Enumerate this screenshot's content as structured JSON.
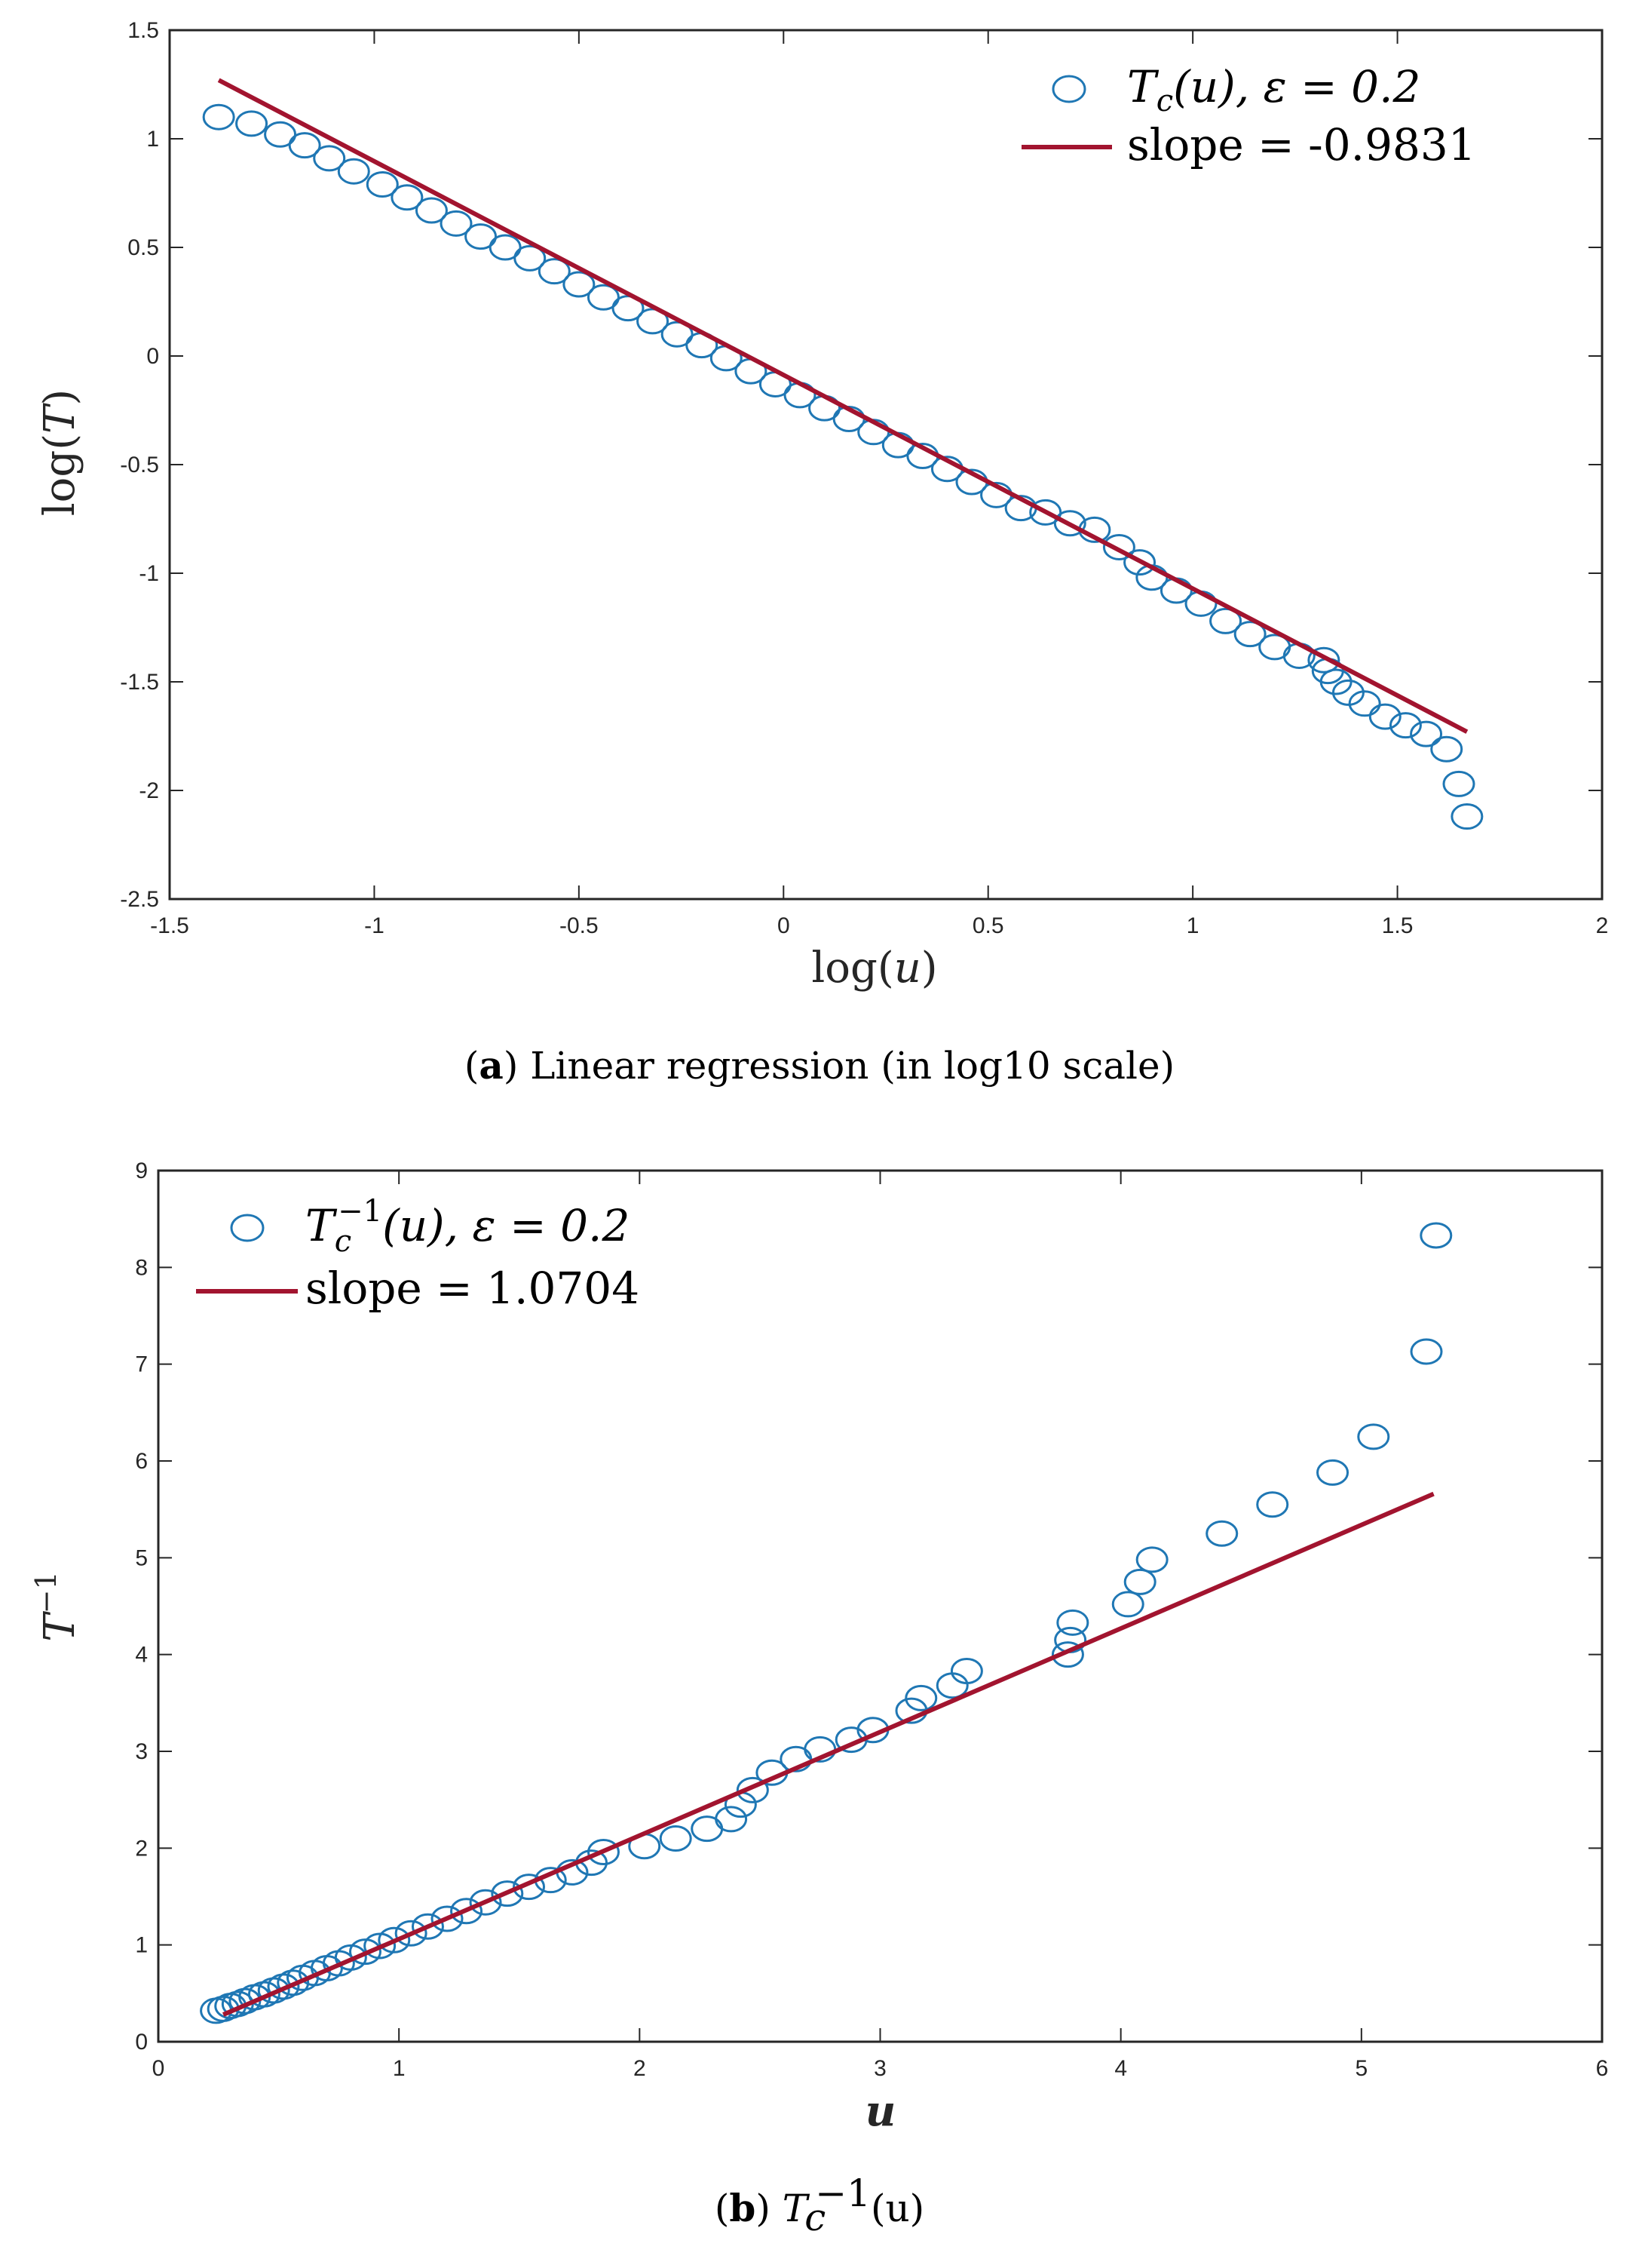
{
  "colors": {
    "marker": "#1f77b4",
    "line": "#a2142f",
    "axis": "#262626"
  },
  "chart_data": [
    {
      "type": "scatter",
      "id": "a",
      "caption_letter": "a",
      "caption_text": "Linear regression (in log10 scale)",
      "xlabel_fn": "log(",
      "xlabel_var": "u",
      "xlabel_close": ")",
      "ylabel_fn": "log(",
      "ylabel_var": "T",
      "ylabel_close": ")",
      "xlim": [
        -1.5,
        2
      ],
      "ylim": [
        -2.5,
        1.5
      ],
      "xticks": [
        -1.5,
        -1,
        -0.5,
        0,
        0.5,
        1,
        1.5,
        2
      ],
      "xtick_labels": [
        "-1.5",
        "-1",
        "-0.5",
        "0",
        "0.5",
        "1",
        "1.5",
        "2"
      ],
      "yticks": [
        -2.5,
        -2,
        -1.5,
        -1,
        -0.5,
        0,
        0.5,
        1,
        1.5
      ],
      "ytick_labels": [
        "-2.5",
        "-2",
        "-1.5",
        "-1",
        "-0.5",
        "0",
        "0.5",
        "1",
        "1.5"
      ],
      "legend": {
        "position": "top-right",
        "series1_math": "T",
        "series1_sub": "c",
        "series1_rest": "(u), ε = 0.2",
        "series2_label": "slope = -0.9831"
      },
      "fit_line": {
        "x": [
          -1.38,
          1.67
        ],
        "y": [
          1.27,
          -1.73
        ]
      },
      "series": [
        {
          "name": "T_c(u), eps = 0.2",
          "x": [
            -1.38,
            -1.3,
            -1.23,
            -1.17,
            -1.11,
            -1.05,
            -0.98,
            -0.92,
            -0.86,
            -0.8,
            -0.74,
            -0.68,
            -0.62,
            -0.56,
            -0.5,
            -0.44,
            -0.38,
            -0.32,
            -0.26,
            -0.2,
            -0.14,
            -0.08,
            -0.02,
            0.04,
            0.1,
            0.16,
            0.22,
            0.28,
            0.34,
            0.4,
            0.46,
            0.52,
            0.58,
            0.64,
            0.7,
            0.76,
            0.82,
            0.87,
            0.9,
            0.96,
            1.02,
            1.08,
            1.14,
            1.2,
            1.26,
            1.32,
            1.33,
            1.35,
            1.38,
            1.42,
            1.47,
            1.52,
            1.57,
            1.62,
            1.65,
            1.67
          ],
          "values": [
            1.1,
            1.07,
            1.02,
            0.97,
            0.91,
            0.85,
            0.79,
            0.73,
            0.67,
            0.61,
            0.55,
            0.5,
            0.45,
            0.39,
            0.33,
            0.27,
            0.22,
            0.16,
            0.1,
            0.05,
            -0.01,
            -0.07,
            -0.13,
            -0.18,
            -0.24,
            -0.29,
            -0.35,
            -0.41,
            -0.46,
            -0.52,
            -0.58,
            -0.64,
            -0.7,
            -0.72,
            -0.77,
            -0.8,
            -0.88,
            -0.95,
            -1.02,
            -1.08,
            -1.14,
            -1.22,
            -1.28,
            -1.34,
            -1.38,
            -1.4,
            -1.45,
            -1.5,
            -1.55,
            -1.6,
            -1.66,
            -1.7,
            -1.74,
            -1.81,
            -1.97,
            -2.12
          ]
        }
      ]
    },
    {
      "type": "scatter",
      "id": "b",
      "caption_letter": "b",
      "caption_math": "T",
      "caption_sub": "c",
      "caption_sup": "−1",
      "caption_rest": "(u)",
      "xlabel_var": "u",
      "ylabel_base": "T",
      "ylabel_sup": "−1",
      "xlim": [
        0,
        6
      ],
      "ylim": [
        0,
        9
      ],
      "xticks": [
        0,
        1,
        2,
        3,
        4,
        5,
        6
      ],
      "xtick_labels": [
        "0",
        "1",
        "2",
        "3",
        "4",
        "5",
        "6"
      ],
      "yticks": [
        0,
        1,
        2,
        3,
        4,
        5,
        6,
        7,
        8,
        9
      ],
      "ytick_labels": [
        "0",
        "1",
        "2",
        "3",
        "4",
        "5",
        "6",
        "7",
        "8",
        "9"
      ],
      "legend": {
        "position": "top-left",
        "series1_math": "T",
        "series1_sub": "c",
        "series1_sup": "−1",
        "series1_rest": "(u), ε = 0.2",
        "series2_label": "slope = 1.0704"
      },
      "fit_line": {
        "x": [
          0.27,
          5.3
        ],
        "y": [
          0.28,
          5.66
        ]
      },
      "series": [
        {
          "name": "T_c^-1(u), eps = 0.2",
          "x": [
            0.24,
            0.27,
            0.3,
            0.33,
            0.36,
            0.4,
            0.44,
            0.48,
            0.52,
            0.56,
            0.6,
            0.65,
            0.7,
            0.75,
            0.8,
            0.86,
            0.92,
            0.98,
            1.05,
            1.12,
            1.2,
            1.28,
            1.36,
            1.45,
            1.54,
            1.63,
            1.72,
            1.8,
            1.85,
            2.02,
            2.15,
            2.28,
            2.38,
            2.42,
            2.47,
            2.55,
            2.65,
            2.75,
            2.88,
            2.97,
            3.13,
            3.17,
            3.3,
            3.36,
            3.78,
            3.79,
            3.8,
            4.03,
            4.08,
            4.13,
            4.42,
            4.63,
            4.88,
            5.05,
            5.27,
            5.31
          ],
          "values": [
            0.32,
            0.34,
            0.37,
            0.39,
            0.42,
            0.46,
            0.49,
            0.53,
            0.57,
            0.61,
            0.66,
            0.71,
            0.76,
            0.81,
            0.87,
            0.93,
            0.99,
            1.05,
            1.12,
            1.19,
            1.27,
            1.35,
            1.44,
            1.53,
            1.6,
            1.67,
            1.75,
            1.85,
            1.96,
            2.02,
            2.1,
            2.2,
            2.3,
            2.45,
            2.6,
            2.78,
            2.92,
            3.02,
            3.12,
            3.22,
            3.42,
            3.55,
            3.68,
            3.83,
            4.0,
            4.15,
            4.33,
            4.52,
            4.75,
            4.98,
            5.25,
            5.55,
            5.88,
            6.25,
            7.13,
            8.33
          ]
        }
      ]
    }
  ]
}
